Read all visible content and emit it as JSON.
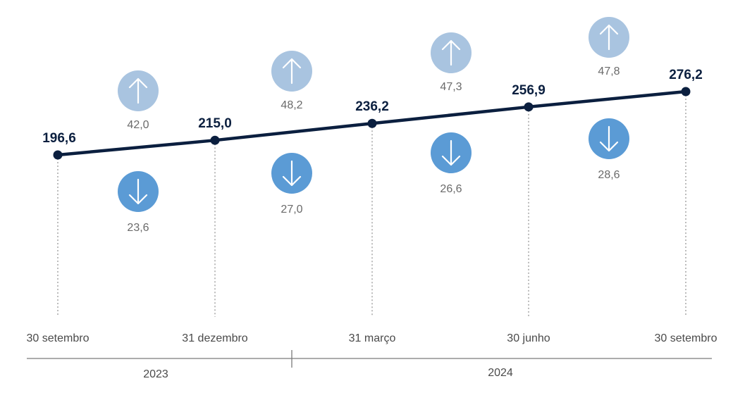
{
  "chart_data": {
    "type": "line",
    "x": [
      "30 setembro",
      "31 dezembro",
      "31 março",
      "30 junho",
      "30 setembro"
    ],
    "values": [
      196.6,
      215.0,
      236.2,
      256.9,
      276.2
    ],
    "value_labels": [
      "196,6",
      "215,0",
      "236,2",
      "256,9",
      "276,2"
    ],
    "inflows": {
      "values": [
        42.0,
        48.2,
        47.3,
        47.8
      ],
      "labels": [
        "42,0",
        "48,2",
        "47,3",
        "47,8"
      ],
      "icon": "arrow-up-icon",
      "color": "#a9c4e0"
    },
    "outflows": {
      "values": [
        23.6,
        27.0,
        26.6,
        28.6
      ],
      "labels": [
        "23,6",
        "27,0",
        "26,6",
        "28,6"
      ],
      "icon": "arrow-down-icon",
      "color": "#5b9bd5"
    },
    "years": [
      {
        "label": "2023"
      },
      {
        "label": "2024"
      }
    ],
    "line_color": "#0b1f3f",
    "grid": false,
    "legend": "none"
  }
}
